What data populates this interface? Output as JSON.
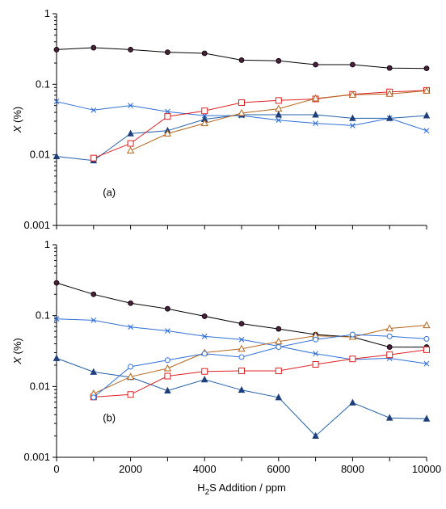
{
  "chart_data": [
    {
      "panel_label": "(a)",
      "type": "line",
      "yscale": "log",
      "ylim": [
        0.001,
        1
      ],
      "xlim": [
        0,
        10000
      ],
      "xlabel": "",
      "ylabel_prefix": "X",
      "ylabel_suffix": " (%)",
      "ytick_labels": [
        "0.001",
        "0.01",
        "0.1",
        "1"
      ],
      "xtick_labels": [],
      "series": [
        {
          "color": "#000000",
          "line_color": "#000000",
          "marker": "circle-filled",
          "marker_fill": "#4a1f3b",
          "x": [
            0,
            1000,
            2000,
            3000,
            4000,
            5000,
            6000,
            7000,
            8000,
            9000,
            10000
          ],
          "y": [
            0.31,
            0.33,
            0.31,
            0.285,
            0.275,
            0.22,
            0.215,
            0.19,
            0.19,
            0.17,
            0.168
          ]
        },
        {
          "color": "#2e6fd8",
          "line_color": "#2e6fd8",
          "marker": "x",
          "x": [
            0,
            1000,
            2000,
            3000,
            4000,
            5000,
            6000,
            7000,
            8000,
            9000,
            10000
          ],
          "y": [
            0.057,
            0.043,
            0.05,
            0.041,
            0.036,
            0.036,
            0.031,
            0.028,
            0.026,
            0.033,
            0.022
          ]
        },
        {
          "color": "#1f3f7a",
          "line_color": "#1f5fa8",
          "marker": "triangle-filled",
          "x": [
            0,
            1000,
            2000,
            3000,
            4000,
            5000,
            6000,
            7000,
            8000,
            9000,
            10000
          ],
          "y": [
            0.0095,
            0.0083,
            0.02,
            0.022,
            0.032,
            0.037,
            0.037,
            0.037,
            0.033,
            0.033,
            0.036
          ]
        },
        {
          "color": "#e02020",
          "line_color": "#e02020",
          "marker": "square-open",
          "x": [
            1000,
            2000,
            3000,
            4000,
            5000,
            6000,
            7000,
            8000,
            9000,
            10000
          ],
          "y": [
            0.009,
            0.0145,
            0.035,
            0.042,
            0.055,
            0.059,
            0.062,
            0.072,
            0.078,
            0.082
          ]
        },
        {
          "color": "#b5651d",
          "line_color": "#b5651d",
          "marker": "triangle-open",
          "x": [
            2000,
            3000,
            4000,
            5000,
            6000,
            7000,
            8000,
            9000,
            10000
          ],
          "y": [
            0.0115,
            0.02,
            0.028,
            0.039,
            0.045,
            0.063,
            0.071,
            0.073,
            0.081
          ]
        }
      ]
    },
    {
      "panel_label": "(b)",
      "type": "line",
      "yscale": "log",
      "ylim": [
        0.001,
        1
      ],
      "xlim": [
        0,
        10000
      ],
      "xlabel_main": "H",
      "xlabel_sub": "2",
      "xlabel_rest": "S Addition / ppm",
      "ylabel_prefix": "X",
      "ylabel_suffix": " (%)",
      "ytick_labels": [
        "0.001",
        "0.01",
        "0.1",
        "1"
      ],
      "xtick_labels": [
        "0",
        "2000",
        "4000",
        "6000",
        "8000",
        "10000"
      ],
      "series": [
        {
          "color": "#000000",
          "line_color": "#000000",
          "marker": "circle-filled",
          "marker_fill": "#4a1f3b",
          "x": [
            0,
            1000,
            2000,
            3000,
            4000,
            5000,
            6000,
            7000,
            8000,
            9000,
            10000
          ],
          "y": [
            0.29,
            0.2,
            0.15,
            0.125,
            0.098,
            0.077,
            0.065,
            0.054,
            0.05,
            0.036,
            0.036
          ]
        },
        {
          "color": "#2e6fd8",
          "line_color": "#2e6fd8",
          "marker": "x",
          "x": [
            0,
            1000,
            2000,
            3000,
            4000,
            5000,
            6000,
            7000,
            8000,
            9000,
            10000
          ],
          "y": [
            0.09,
            0.086,
            0.069,
            0.061,
            0.051,
            0.046,
            0.037,
            0.029,
            0.024,
            0.025,
            0.021
          ]
        },
        {
          "color": "#1f3f7a",
          "line_color": "#1f5fa8",
          "marker": "triangle-filled",
          "x": [
            0,
            1000,
            2000,
            3000,
            4000,
            5000,
            6000,
            7000,
            8000,
            9000,
            10000
          ],
          "y": [
            0.025,
            0.016,
            0.0135,
            0.0087,
            0.0125,
            0.0089,
            0.007,
            0.002,
            0.0059,
            0.0036,
            0.0035
          ]
        },
        {
          "color": "#e02020",
          "line_color": "#e02020",
          "marker": "square-open",
          "x": [
            1000,
            2000,
            3000,
            4000,
            5000,
            6000,
            7000,
            8000,
            9000,
            10000
          ],
          "y": [
            0.0071,
            0.0077,
            0.014,
            0.0163,
            0.0166,
            0.0166,
            0.0205,
            0.0245,
            0.028,
            0.033
          ]
        },
        {
          "color": "#b5651d",
          "line_color": "#b5651d",
          "marker": "triangle-open",
          "x": [
            1000,
            2000,
            3000,
            4000,
            5000,
            6000,
            7000,
            8000,
            9000,
            10000
          ],
          "y": [
            0.0079,
            0.0137,
            0.018,
            0.03,
            0.034,
            0.043,
            0.052,
            0.05,
            0.066,
            0.073
          ]
        },
        {
          "color": "#2e6fd8",
          "line_color": "#2e6fd8",
          "marker": "circle-open",
          "x": [
            1000,
            2000,
            3000,
            4000,
            5000,
            6000,
            7000,
            8000,
            9000,
            10000
          ],
          "y": [
            0.007,
            0.019,
            0.0235,
            0.029,
            0.026,
            0.036,
            0.046,
            0.054,
            0.051,
            0.047
          ]
        }
      ]
    }
  ]
}
